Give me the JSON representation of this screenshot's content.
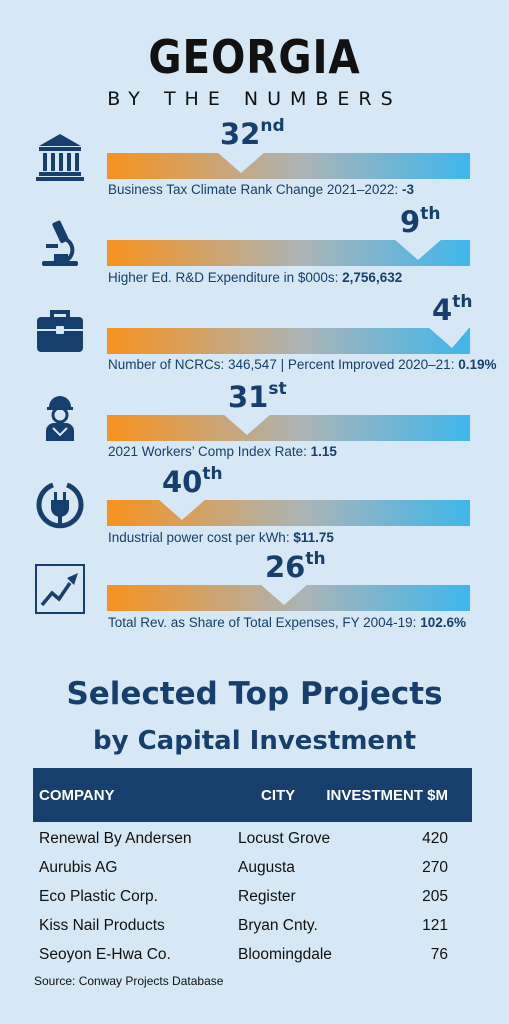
{
  "header": {
    "title": "GEORGIA",
    "subtitle": "BY THE NUMBERS"
  },
  "stats": [
    {
      "icon": "bank-icon",
      "rank": "32",
      "suffix": "nd",
      "label": "Business Tax Climate Rank Change 2021–2022:",
      "value": "-3"
    },
    {
      "icon": "microscope-icon",
      "rank": "9",
      "suffix": "th",
      "label": "Higher Ed. R&D Expenditure in $000s:",
      "value": "2,756,632"
    },
    {
      "icon": "briefcase-icon",
      "rank": "4",
      "suffix": "th",
      "label": "Number of NCRCs: 346,547 | Percent Improved 2020–21:",
      "value": "0.19%"
    },
    {
      "icon": "construction-worker-icon",
      "rank": "31",
      "suffix": "st",
      "label": "2021 Workers’ Comp Index Rate:",
      "value": "1.15"
    },
    {
      "icon": "power-plug-icon",
      "rank": "40",
      "suffix": "th",
      "label": "Industrial power cost per kWh:",
      "value": "$11.75"
    },
    {
      "icon": "rising-chart-icon",
      "rank": "26",
      "suffix": "th",
      "label": "Total Rev. as Share of Total Expenses, FY 2004-19:",
      "value": "102.6%"
    }
  ],
  "projects": {
    "title": "Selected Top Projects",
    "subtitle": "by Capital Investment",
    "columns": [
      "COMPANY",
      "CITY",
      "INVESTMENT $M"
    ],
    "rows": [
      [
        "Renewal By Andersen",
        "Locust Grove",
        "420"
      ],
      [
        "Aurubis AG",
        "Augusta",
        "270"
      ],
      [
        "Eco Plastic Corp.",
        "Register",
        "205"
      ],
      [
        "Kiss Nail Products",
        "Bryan Cnty.",
        "121"
      ],
      [
        "Seoyon E-Hwa Co.",
        "Bloomingdale",
        "76"
      ]
    ],
    "source": "Source: Conway Projects Database"
  },
  "colors": {
    "navy": "#163f6d",
    "orange": "#f7921e",
    "blue": "#3fb6ec",
    "background": "#d6e8f5"
  }
}
